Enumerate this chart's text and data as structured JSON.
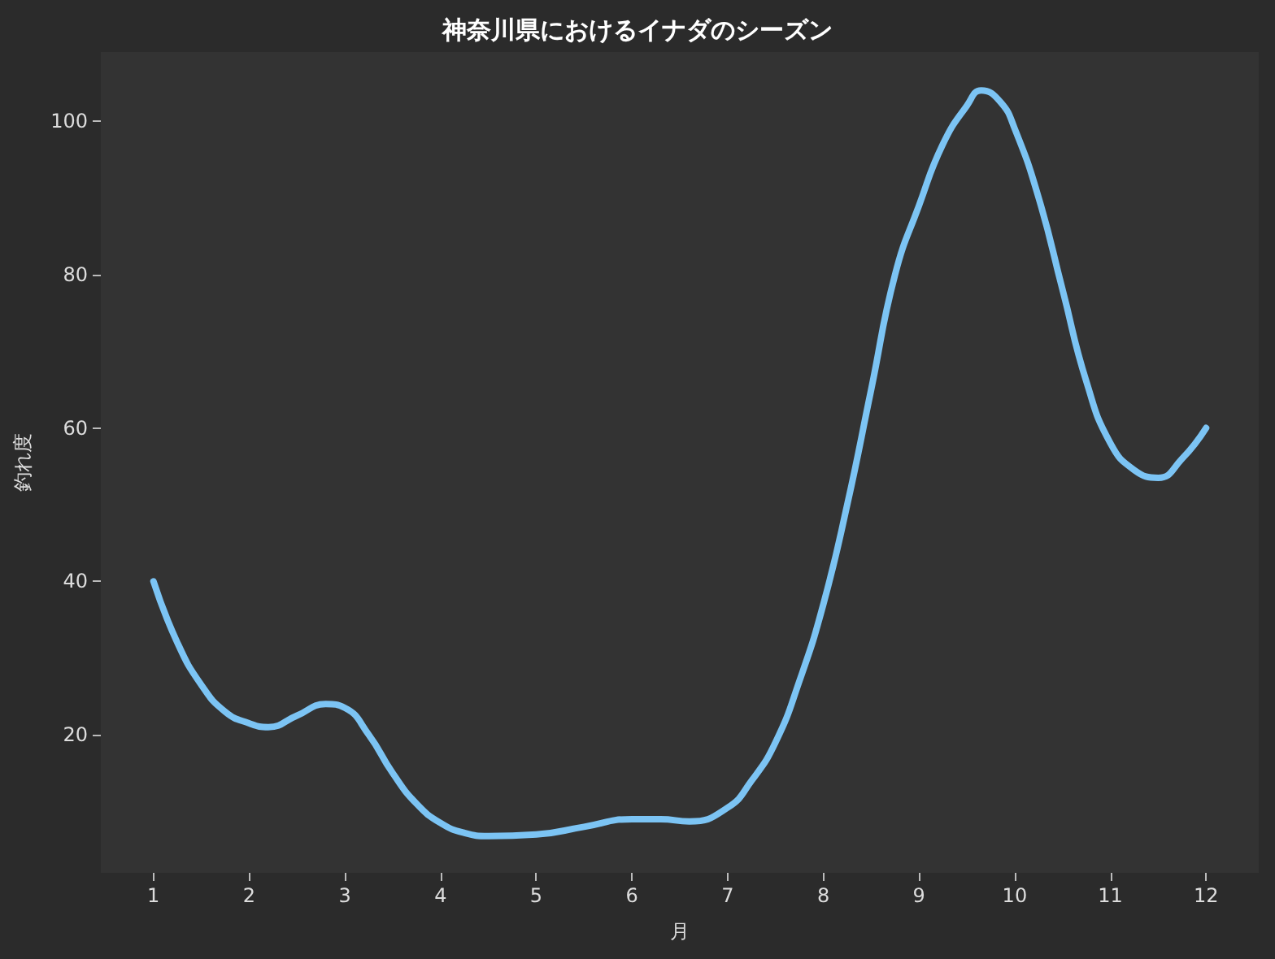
{
  "chart_data": {
    "type": "line",
    "title": "神奈川県におけるイナダのシーズン",
    "xlabel": "月",
    "ylabel": "釣れ度",
    "series": [
      {
        "color": "#7cc4f4",
        "x": [
          1.0,
          1.25,
          1.5,
          1.75,
          2.0,
          2.2,
          2.5,
          2.8,
          3.0,
          3.25,
          3.5,
          3.75,
          4.0,
          4.25,
          4.5,
          5.0,
          5.5,
          6.0,
          6.3,
          6.6,
          7.0,
          7.25,
          7.5,
          7.75,
          8.0,
          8.25,
          8.5,
          8.75,
          9.0,
          9.25,
          9.5,
          9.65,
          9.85,
          10.0,
          10.25,
          10.5,
          10.75,
          11.0,
          11.25,
          11.5,
          11.75,
          12.0
        ],
        "values": [
          40,
          32,
          26.5,
          23,
          21.5,
          21,
          22.5,
          24,
          23.5,
          20,
          15,
          11,
          8.5,
          7.2,
          6.8,
          7,
          8,
          9,
          9,
          8.7,
          10.5,
          14,
          19,
          27,
          37,
          50,
          65,
          80,
          89,
          97,
          102,
          104,
          102.5,
          99,
          90,
          78,
          66,
          58,
          54.5,
          53.5,
          56,
          60
        ]
      }
    ],
    "xlim": [
      0.45,
      12.55
    ],
    "xticks": [
      1,
      2,
      3,
      4,
      5,
      6,
      7,
      8,
      9,
      10,
      11,
      12
    ],
    "ylim": [
      2,
      109
    ],
    "yticks": [
      20,
      40,
      60,
      80,
      100
    ]
  }
}
